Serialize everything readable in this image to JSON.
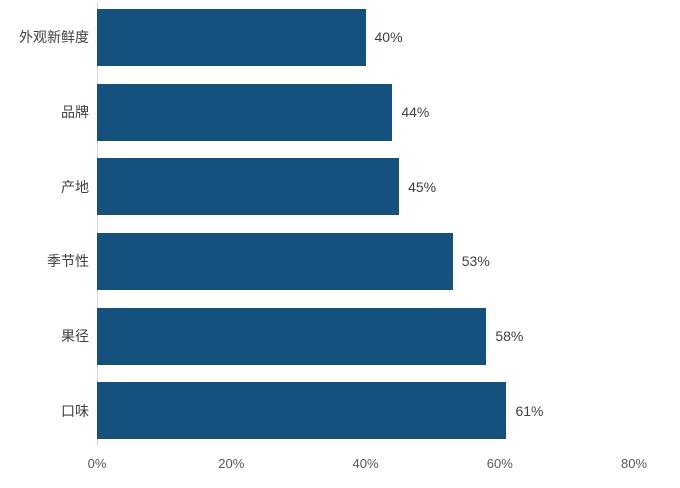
{
  "chart_data": {
    "type": "bar",
    "orientation": "horizontal",
    "title": "",
    "xlabel": "",
    "ylabel": "",
    "categories": [
      "外观新鲜度",
      "品牌",
      "产地",
      "季节性",
      "果径",
      "口味"
    ],
    "values": [
      40,
      44,
      45,
      53,
      58,
      61
    ],
    "value_labels": [
      "40%",
      "44%",
      "45%",
      "53%",
      "58%",
      "61%"
    ],
    "x_tick_labels": [
      "0%",
      "20%",
      "40%",
      "60%",
      "80%"
    ],
    "xlim": [
      0,
      80
    ],
    "grid": false,
    "legend": "none",
    "bar_color": "#15517f",
    "label_color": "#404040",
    "tick_color": "#595959",
    "axis_line_color": "#d6d6d6"
  }
}
